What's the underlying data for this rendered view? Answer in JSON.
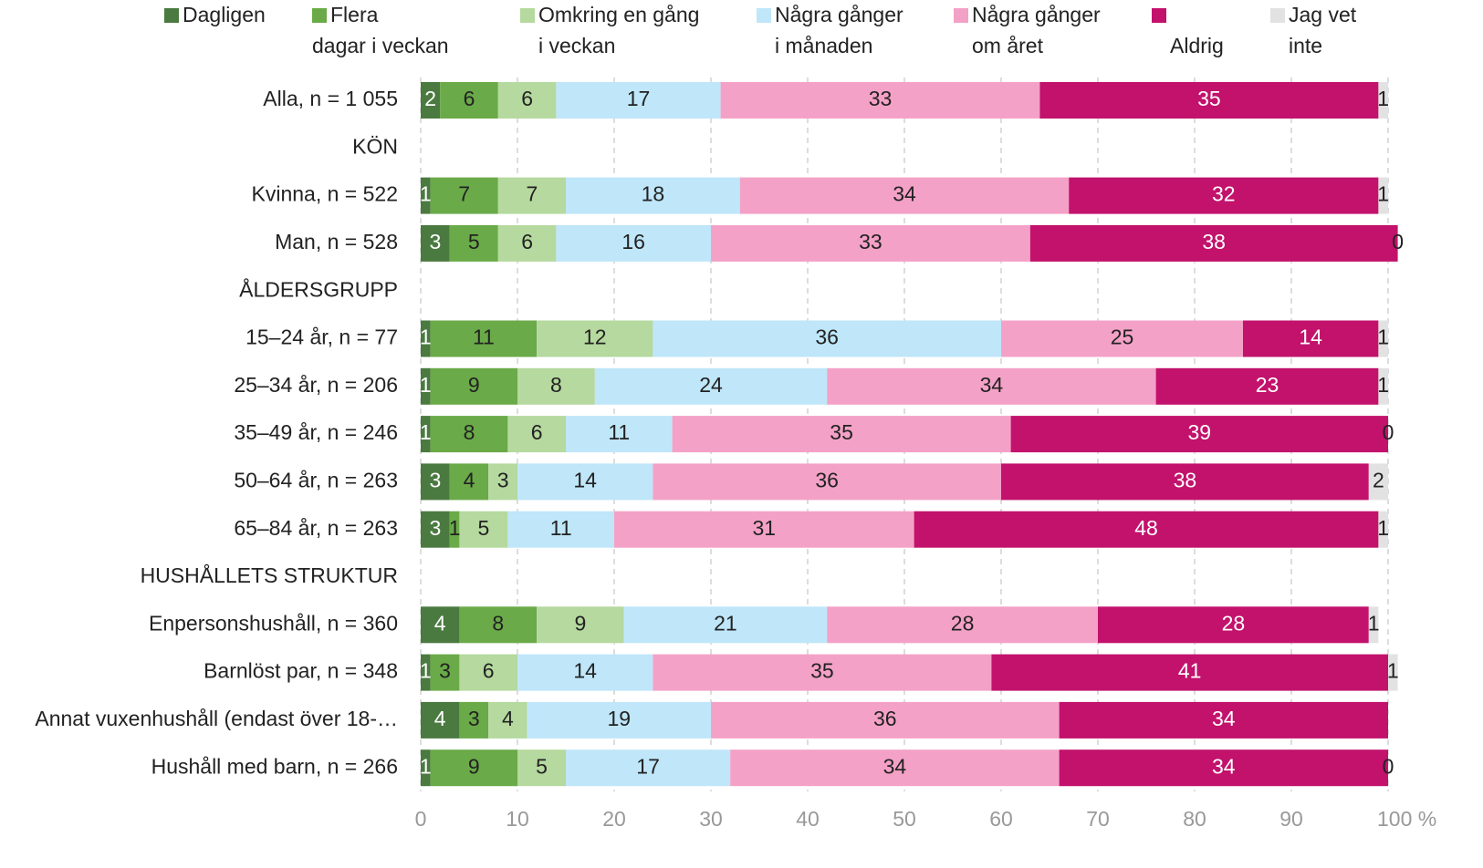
{
  "chart_data": {
    "type": "stacked-bar-horizontal",
    "categories": [
      "Alla, n = 1 055",
      "KÖN",
      "Kvinna, n = 522",
      "Man, n = 528",
      "ÅLDERSGRUPP",
      "15–24 år, n = 77",
      "25–34 år, n = 206",
      "35–49 år, n = 246",
      "50–64 år, n = 263",
      "65–84 år, n = 263",
      "HUSHÅLLETS STRUKTUR",
      "Enpersonshushåll, n = 360",
      "Barnlöst par, n = 348",
      "Annat vuxenhushåll (endast över 18-…",
      "Hushåll med barn, n = 266"
    ],
    "series": [
      {
        "name": "Dagligen",
        "color": "#4a7a40",
        "label_color": "#ffffff",
        "values": [
          2,
          null,
          1,
          3,
          null,
          1,
          1,
          1,
          3,
          3,
          null,
          4,
          1,
          4,
          1
        ]
      },
      {
        "name": "Flera\ndagar i veckan",
        "color": "#6aaa48",
        "label_color": "#222222",
        "values": [
          6,
          null,
          7,
          5,
          null,
          11,
          9,
          8,
          4,
          1,
          null,
          8,
          3,
          3,
          9
        ]
      },
      {
        "name": "Omkring en gång\ni veckan",
        "color": "#b5d99e",
        "label_color": "#222222",
        "values": [
          6,
          null,
          7,
          6,
          null,
          12,
          8,
          6,
          3,
          5,
          null,
          9,
          6,
          4,
          5
        ]
      },
      {
        "name": "Några gånger\ni månaden",
        "color": "#bfe6f9",
        "label_color": "#222222",
        "values": [
          17,
          null,
          18,
          16,
          null,
          36,
          24,
          11,
          14,
          11,
          null,
          21,
          14,
          19,
          17
        ]
      },
      {
        "name": "Några gånger\nom året",
        "color": "#f4a1c7",
        "label_color": "#222222",
        "values": [
          33,
          null,
          34,
          33,
          null,
          25,
          34,
          35,
          36,
          31,
          null,
          28,
          35,
          36,
          34
        ]
      },
      {
        "name": "Aldrig",
        "color": "#c2126c",
        "label_color": "#ffffff",
        "values": [
          35,
          null,
          32,
          38,
          null,
          14,
          23,
          39,
          38,
          48,
          null,
          28,
          41,
          34,
          34
        ]
      },
      {
        "name": "Jag vet\ninte",
        "color": "#e2e2e2",
        "label_color": "#222222",
        "values": [
          1,
          null,
          1,
          0,
          null,
          1,
          1,
          0,
          2,
          1,
          null,
          1,
          1,
          null,
          0
        ]
      }
    ],
    "xlim": [
      0,
      100
    ],
    "xticks": [
      0,
      10,
      20,
      30,
      40,
      50,
      60,
      70,
      80,
      90,
      {
        "value": 100,
        "label": "100 %"
      }
    ],
    "grid": true
  }
}
